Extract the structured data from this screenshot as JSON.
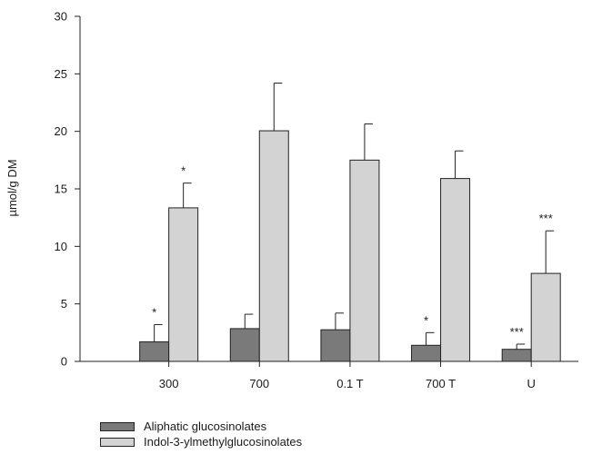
{
  "chart_data": {
    "type": "bar",
    "title": "",
    "xlabel": "",
    "ylabel": "µmol/g DM",
    "ylim": [
      0,
      30
    ],
    "yticks": [
      0,
      5,
      10,
      15,
      20,
      25,
      30
    ],
    "categories": [
      "300",
      "700",
      "0.1 T",
      "700 T",
      "U"
    ],
    "grid": false,
    "legend_position": "bottom-left",
    "series": [
      {
        "name": "Aliphatic glucosinolates",
        "color": "#7a7a7a",
        "values": [
          1.7,
          2.85,
          2.75,
          1.4,
          1.05
        ],
        "error": [
          1.5,
          1.25,
          1.45,
          1.1,
          0.45
        ],
        "significance": [
          "*",
          "",
          "",
          "*",
          "***"
        ]
      },
      {
        "name": "Indol-3-ylmethylglucosinolates",
        "color": "#d3d3d3",
        "values": [
          13.35,
          20.05,
          17.5,
          15.9,
          7.65
        ],
        "error": [
          2.15,
          4.15,
          3.15,
          2.4,
          3.7
        ],
        "significance": [
          "*",
          "",
          "",
          "",
          "***"
        ]
      }
    ]
  }
}
